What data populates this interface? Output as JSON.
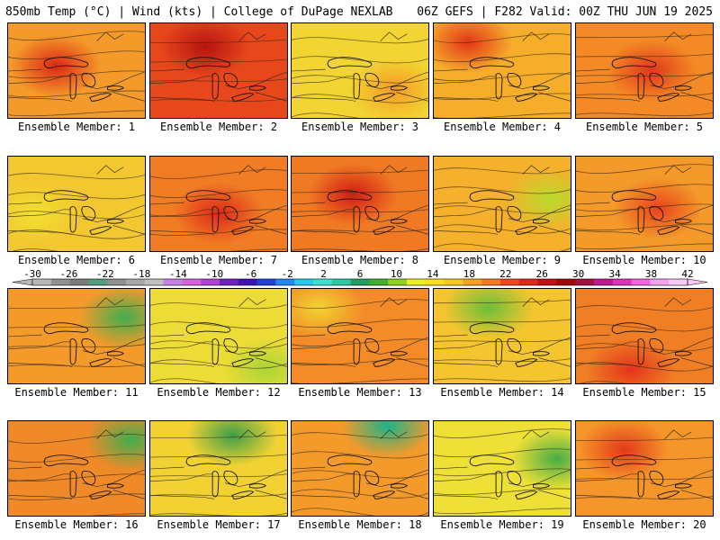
{
  "header": {
    "left": "850mb Temp (°C) | Wind (kts) | College of DuPage NEXLAB",
    "right": "06Z GEFS | F282 Valid: 00Z THU JUN 19 2025"
  },
  "colorbar": {
    "ticks": [
      "-30",
      "-26",
      "-22",
      "-18",
      "-14",
      "-10",
      "-6",
      "-2",
      "2",
      "6",
      "10",
      "14",
      "18",
      "22",
      "26",
      "30",
      "34",
      "38",
      "42"
    ],
    "colors": [
      "#b8b8b8",
      "#909090",
      "#7a7a7a",
      "#4fa07a",
      "#909090",
      "#a8a8a8",
      "#c0c0c0",
      "#c880e8",
      "#d860e0",
      "#b040d8",
      "#7020c0",
      "#4010b0",
      "#2040d8",
      "#2088f0",
      "#28c8f0",
      "#40e0d0",
      "#30c8a0",
      "#20a060",
      "#40b030",
      "#90d020",
      "#e8f020",
      "#f8e020",
      "#f8c820",
      "#f8a020",
      "#f87820",
      "#f04818",
      "#e02818",
      "#c01010",
      "#a00808",
      "#a01040",
      "#c01890",
      "#e030c0",
      "#f860e8",
      "#f8a0f0",
      "#f8c8f8"
    ]
  },
  "members": [
    {
      "label": "Ensemble Member: 1",
      "fill": "#f49a2a",
      "hot": "#dd2515",
      "hx": 0.35,
      "hy": 0.45
    },
    {
      "label": "Ensemble Member: 2",
      "fill": "#e8471c",
      "hot": "#b5140f",
      "hx": 0.4,
      "hy": 0.25
    },
    {
      "label": "Ensemble Member: 3",
      "fill": "#f2d432",
      "hot": "#f59a26",
      "hx": 0.75,
      "hy": 0.7
    },
    {
      "label": "Ensemble Member: 4",
      "fill": "#f6ae2a",
      "hot": "#e23519",
      "hx": 0.25,
      "hy": 0.2
    },
    {
      "label": "Ensemble Member: 5",
      "fill": "#f48a25",
      "hot": "#e0371a",
      "hx": 0.55,
      "hy": 0.5
    },
    {
      "label": "Ensemble Member: 6",
      "fill": "#f2c730",
      "hot": "#f2e030",
      "hx": 0.2,
      "hy": 0.6
    },
    {
      "label": "Ensemble Member: 7",
      "fill": "#f07c24",
      "hot": "#de2a16",
      "hx": 0.5,
      "hy": 0.6
    },
    {
      "label": "Ensemble Member: 8",
      "fill": "#f07a24",
      "hot": "#d21c13",
      "hx": 0.45,
      "hy": 0.4
    },
    {
      "label": "Ensemble Member: 9",
      "fill": "#f5b02c",
      "hot": "#b8dc2c",
      "hx": 0.85,
      "hy": 0.45
    },
    {
      "label": "Ensemble Member: 10",
      "fill": "#f49a2a",
      "hot": "#e8431b",
      "hx": 0.6,
      "hy": 0.55
    },
    {
      "label": "Ensemble Member: 11",
      "fill": "#f49a2a",
      "hot": "#41ad4f",
      "hx": 0.85,
      "hy": 0.3
    },
    {
      "label": "Ensemble Member: 12",
      "fill": "#eedc36",
      "hot": "#a9d536",
      "hx": 0.85,
      "hy": 0.85
    },
    {
      "label": "Ensemble Member: 13",
      "fill": "#f28b28",
      "hot": "#f2d432",
      "hx": 0.2,
      "hy": 0.2
    },
    {
      "label": "Ensemble Member: 14",
      "fill": "#f4c52e",
      "hot": "#6abf3a",
      "hx": 0.4,
      "hy": 0.2
    },
    {
      "label": "Ensemble Member: 15",
      "fill": "#f07e25",
      "hot": "#e2351a",
      "hx": 0.4,
      "hy": 0.85
    },
    {
      "label": "Ensemble Member: 16",
      "fill": "#f08a28",
      "hot": "#41ad4f",
      "hx": 0.9,
      "hy": 0.2
    },
    {
      "label": "Ensemble Member: 17",
      "fill": "#f1d232",
      "hot": "#3d9e4a",
      "hx": 0.6,
      "hy": 0.15
    },
    {
      "label": "Ensemble Member: 18",
      "fill": "#f49a2a",
      "hot": "#1cb389",
      "hx": 0.7,
      "hy": 0.05
    },
    {
      "label": "Ensemble Member: 19",
      "fill": "#eee036",
      "hot": "#47ad46",
      "hx": 0.9,
      "hy": 0.4
    },
    {
      "label": "Ensemble Member: 20",
      "fill": "#f5962a",
      "hot": "#e2391a",
      "hx": 0.35,
      "hy": 0.3
    }
  ]
}
